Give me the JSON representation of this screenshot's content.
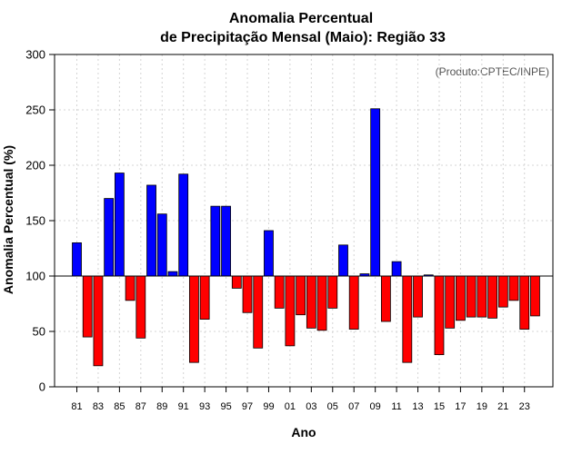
{
  "chart_data": {
    "type": "bar",
    "title": [
      "Anomalia Percentual",
      "de Precipitação Mensal (Maio): Região 33"
    ],
    "credit": "(Produto:CPTEC/INPE)",
    "xlabel": "Ano",
    "ylabel": "Anomalia Percentual (%)",
    "ylim": [
      0,
      300
    ],
    "yticks": [
      "0",
      "50",
      "100",
      "150",
      "200",
      "250",
      "300"
    ],
    "baseline": 100,
    "grid": true,
    "colors": {
      "above": "#0000ff",
      "below": "#ff0000",
      "edge": "#000000"
    },
    "categories": [
      "81",
      "82",
      "83",
      "84",
      "85",
      "86",
      "87",
      "88",
      "89",
      "90",
      "91",
      "92",
      "93",
      "94",
      "95",
      "96",
      "97",
      "98",
      "99",
      "00",
      "01",
      "02",
      "03",
      "04",
      "05",
      "06",
      "07",
      "08",
      "09",
      "10",
      "11",
      "12",
      "13",
      "14",
      "15",
      "16",
      "17",
      "18",
      "19",
      "20",
      "21",
      "22",
      "23",
      "24"
    ],
    "tick_labels": [
      "81",
      "83",
      "85",
      "87",
      "89",
      "91",
      "93",
      "95",
      "97",
      "99",
      "01",
      "03",
      "05",
      "07",
      "09",
      "11",
      "13",
      "15",
      "17",
      "19",
      "21",
      "23"
    ],
    "values": [
      130,
      45,
      19,
      170,
      193,
      78,
      44,
      182,
      156,
      104,
      192,
      22,
      61,
      163,
      163,
      89,
      67,
      35,
      141,
      71,
      37,
      65,
      53,
      51,
      71,
      128,
      52,
      102,
      251,
      59,
      113,
      22,
      63,
      101,
      29,
      53,
      60,
      63,
      63,
      62,
      72,
      78,
      52,
      64
    ]
  }
}
